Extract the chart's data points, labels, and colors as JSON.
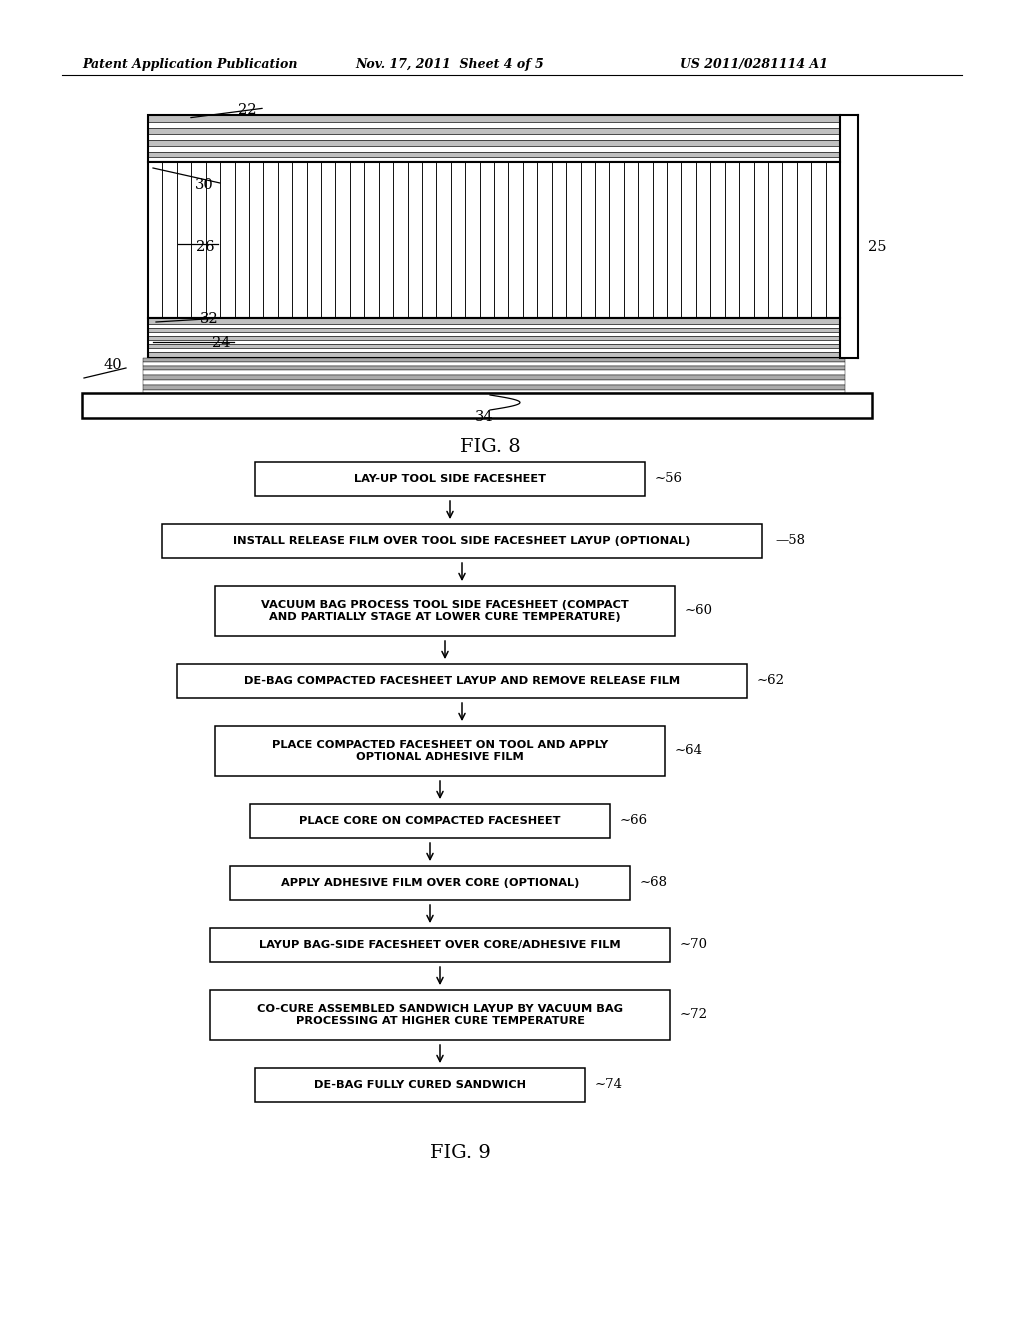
{
  "header_left": "Patent Application Publication",
  "header_mid": "Nov. 17, 2011  Sheet 4 of 5",
  "header_right": "US 2011/0281114 A1",
  "fig8_label": "FIG. 8",
  "fig9_label": "FIG. 9",
  "flowchart_steps": [
    {
      "text": "LAY-UP TOOL SIDE FACESHEET",
      "tag": "56",
      "multiline": false,
      "wide": false
    },
    {
      "text": "INSTALL RELEASE FILM OVER TOOL SIDE FACESHEET LAYUP (OPTIONAL)",
      "tag": "58",
      "multiline": false,
      "wide": true
    },
    {
      "text": "VACUUM BAG PROCESS TOOL SIDE FACESHEET (COMPACT\nAND PARTIALLY STAGE AT LOWER CURE TEMPERATURE)",
      "tag": "60",
      "multiline": true,
      "wide": false
    },
    {
      "text": "DE-BAG COMPACTED FACESHEET LAYUP AND REMOVE RELEASE FILM",
      "tag": "62",
      "multiline": false,
      "wide": false
    },
    {
      "text": "PLACE COMPACTED FACESHEET ON TOOL AND APPLY\nOPTIONAL ADHESIVE FILM",
      "tag": "64",
      "multiline": true,
      "wide": false
    },
    {
      "text": "PLACE CORE ON COMPACTED FACESHEET",
      "tag": "66",
      "multiline": false,
      "wide": false
    },
    {
      "text": "APPLY ADHESIVE FILM OVER CORE (OPTIONAL)",
      "tag": "68",
      "multiline": false,
      "wide": false
    },
    {
      "text": "LAYUP BAG-SIDE FACESHEET OVER CORE/ADHESIVE FILM",
      "tag": "70",
      "multiline": false,
      "wide": false
    },
    {
      "text": "CO-CURE ASSEMBLED SANDWICH LAYUP BY VACUUM BAG\nPROCESSING AT HIGHER CURE TEMPERATURE",
      "tag": "72",
      "multiline": true,
      "wide": false
    },
    {
      "text": "DE-BAG FULLY CURED SANDWICH",
      "tag": "74",
      "multiline": false,
      "wide": false
    }
  ],
  "bg_color": "#ffffff",
  "text_color": "#000000"
}
